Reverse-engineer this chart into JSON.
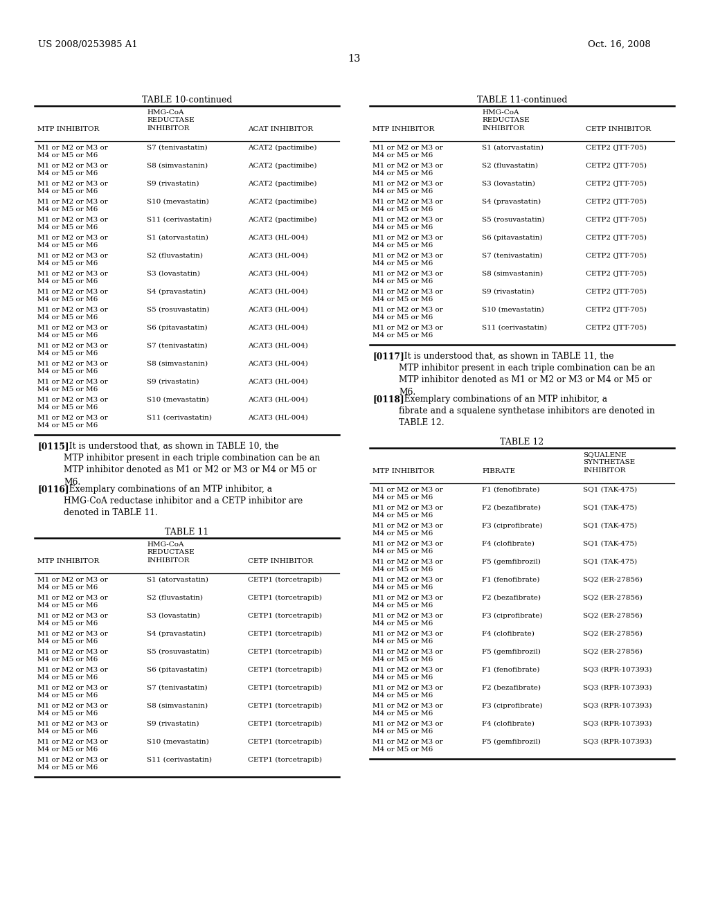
{
  "bg_color": "#ffffff",
  "header_left": "US 2008/0253985 A1",
  "header_right": "Oct. 16, 2008",
  "page_number": "13",
  "table10_title": "TABLE 10-continued",
  "table10_rows": [
    [
      "M1 or M2 or M3 or\nM4 or M5 or M6",
      "S7 (tenivastatin)",
      "ACAT2 (pactimibe)"
    ],
    [
      "M1 or M2 or M3 or\nM4 or M5 or M6",
      "S8 (simvastanin)",
      "ACAT2 (pactimibe)"
    ],
    [
      "M1 or M2 or M3 or\nM4 or M5 or M6",
      "S9 (rivastatin)",
      "ACAT2 (pactimibe)"
    ],
    [
      "M1 or M2 or M3 or\nM4 or M5 or M6",
      "S10 (mevastatin)",
      "ACAT2 (pactimibe)"
    ],
    [
      "M1 or M2 or M3 or\nM4 or M5 or M6",
      "S11 (cerivastatin)",
      "ACAT2 (pactimibe)"
    ],
    [
      "M1 or M2 or M3 or\nM4 or M5 or M6",
      "S1 (atorvastatin)",
      "ACAT3 (HL-004)"
    ],
    [
      "M1 or M2 or M3 or\nM4 or M5 or M6",
      "S2 (fluvastatin)",
      "ACAT3 (HL-004)"
    ],
    [
      "M1 or M2 or M3 or\nM4 or M5 or M6",
      "S3 (lovastatin)",
      "ACAT3 (HL-004)"
    ],
    [
      "M1 or M2 or M3 or\nM4 or M5 or M6",
      "S4 (pravastatin)",
      "ACAT3 (HL-004)"
    ],
    [
      "M1 or M2 or M3 or\nM4 or M5 or M6",
      "S5 (rosuvastatin)",
      "ACAT3 (HL-004)"
    ],
    [
      "M1 or M2 or M3 or\nM4 or M5 or M6",
      "S6 (pitavastatin)",
      "ACAT3 (HL-004)"
    ],
    [
      "M1 or M2 or M3 or\nM4 or M5 or M6",
      "S7 (tenivastatin)",
      "ACAT3 (HL-004)"
    ],
    [
      "M1 or M2 or M3 or\nM4 or M5 or M6",
      "S8 (simvastanin)",
      "ACAT3 (HL-004)"
    ],
    [
      "M1 or M2 or M3 or\nM4 or M5 or M6",
      "S9 (rivastatin)",
      "ACAT3 (HL-004)"
    ],
    [
      "M1 or M2 or M3 or\nM4 or M5 or M6",
      "S10 (mevastatin)",
      "ACAT3 (HL-004)"
    ],
    [
      "M1 or M2 or M3 or\nM4 or M5 or M6",
      "S11 (cerivastatin)",
      "ACAT3 (HL-004)"
    ]
  ],
  "table11_title_continued": "TABLE 11-continued",
  "table11_continued_rows": [
    [
      "M1 or M2 or M3 or\nM4 or M5 or M6",
      "S1 (atorvastatin)",
      "CETP2 (JTT-705)"
    ],
    [
      "M1 or M2 or M3 or\nM4 or M5 or M6",
      "S2 (fluvastatin)",
      "CETP2 (JTT-705)"
    ],
    [
      "M1 or M2 or M3 or\nM4 or M5 or M6",
      "S3 (lovastatin)",
      "CETP2 (JTT-705)"
    ],
    [
      "M1 or M2 or M3 or\nM4 or M5 or M6",
      "S4 (pravastatin)",
      "CETP2 (JTT-705)"
    ],
    [
      "M1 or M2 or M3 or\nM4 or M5 or M6",
      "S5 (rosuvastatin)",
      "CETP2 (JTT-705)"
    ],
    [
      "M1 or M2 or M3 or\nM4 or M5 or M6",
      "S6 (pitavastatin)",
      "CETP2 (JTT-705)"
    ],
    [
      "M1 or M2 or M3 or\nM4 or M5 or M6",
      "S7 (tenivastatin)",
      "CETP2 (JTT-705)"
    ],
    [
      "M1 or M2 or M3 or\nM4 or M5 or M6",
      "S8 (simvastanin)",
      "CETP2 (JTT-705)"
    ],
    [
      "M1 or M2 or M3 or\nM4 or M5 or M6",
      "S9 (rivastatin)",
      "CETP2 (JTT-705)"
    ],
    [
      "M1 or M2 or M3 or\nM4 or M5 or M6",
      "S10 (mevastatin)",
      "CETP2 (JTT-705)"
    ],
    [
      "M1 or M2 or M3 or\nM4 or M5 or M6",
      "S11 (cerivastatin)",
      "CETP2 (JTT-705)"
    ]
  ],
  "table11_title": "TABLE 11",
  "table11_rows": [
    [
      "M1 or M2 or M3 or\nM4 or M5 or M6",
      "S1 (atorvastatin)",
      "CETP1 (torcetrapib)"
    ],
    [
      "M1 or M2 or M3 or\nM4 or M5 or M6",
      "S2 (fluvastatin)",
      "CETP1 (torcetrapib)"
    ],
    [
      "M1 or M2 or M3 or\nM4 or M5 or M6",
      "S3 (lovastatin)",
      "CETP1 (torcetrapib)"
    ],
    [
      "M1 or M2 or M3 or\nM4 or M5 or M6",
      "S4 (pravastatin)",
      "CETP1 (torcetrapib)"
    ],
    [
      "M1 or M2 or M3 or\nM4 or M5 or M6",
      "S5 (rosuvastatin)",
      "CETP1 (torcetrapib)"
    ],
    [
      "M1 or M2 or M3 or\nM4 or M5 or M6",
      "S6 (pitavastatin)",
      "CETP1 (torcetrapib)"
    ],
    [
      "M1 or M2 or M3 or\nM4 or M5 or M6",
      "S7 (tenivastatin)",
      "CETP1 (torcetrapib)"
    ],
    [
      "M1 or M2 or M3 or\nM4 or M5 or M6",
      "S8 (simvastanin)",
      "CETP1 (torcetrapib)"
    ],
    [
      "M1 or M2 or M3 or\nM4 or M5 or M6",
      "S9 (rivastatin)",
      "CETP1 (torcetrapib)"
    ],
    [
      "M1 or M2 or M3 or\nM4 or M5 or M6",
      "S10 (mevastatin)",
      "CETP1 (torcetrapib)"
    ],
    [
      "M1 or M2 or M3 or\nM4 or M5 or M6",
      "S11 (cerivastatin)",
      "CETP1 (torcetrapib)"
    ]
  ],
  "table12_title": "TABLE 12",
  "table12_rows": [
    [
      "M1 or M2 or M3 or\nM4 or M5 or M6",
      "F1 (fenofibrate)",
      "SQ1 (TAK-475)"
    ],
    [
      "M1 or M2 or M3 or\nM4 or M5 or M6",
      "F2 (bezafibrate)",
      "SQ1 (TAK-475)"
    ],
    [
      "M1 or M2 or M3 or\nM4 or M5 or M6",
      "F3 (ciprofibrate)",
      "SQ1 (TAK-475)"
    ],
    [
      "M1 or M2 or M3 or\nM4 or M5 or M6",
      "F4 (clofibrate)",
      "SQ1 (TAK-475)"
    ],
    [
      "M1 or M2 or M3 or\nM4 or M5 or M6",
      "F5 (gemfibrozil)",
      "SQ1 (TAK-475)"
    ],
    [
      "M1 or M2 or M3 or\nM4 or M5 or M6",
      "F1 (fenofibrate)",
      "SQ2 (ER-27856)"
    ],
    [
      "M1 or M2 or M3 or\nM4 or M5 or M6",
      "F2 (bezafibrate)",
      "SQ2 (ER-27856)"
    ],
    [
      "M1 or M2 or M3 or\nM4 or M5 or M6",
      "F3 (ciprofibrate)",
      "SQ2 (ER-27856)"
    ],
    [
      "M1 or M2 or M3 or\nM4 or M5 or M6",
      "F4 (clofibrate)",
      "SQ2 (ER-27856)"
    ],
    [
      "M1 or M2 or M3 or\nM4 or M5 or M6",
      "F5 (gemfibrozil)",
      "SQ2 (ER-27856)"
    ],
    [
      "M1 or M2 or M3 or\nM4 or M5 or M6",
      "F1 (fenofibrate)",
      "SQ3 (RPR-107393)"
    ],
    [
      "M1 or M2 or M3 or\nM4 or M5 or M6",
      "F2 (bezafibrate)",
      "SQ3 (RPR-107393)"
    ],
    [
      "M1 or M2 or M3 or\nM4 or M5 or M6",
      "F3 (ciprofibrate)",
      "SQ3 (RPR-107393)"
    ],
    [
      "M1 or M2 or M3 or\nM4 or M5 or M6",
      "F4 (clofibrate)",
      "SQ3 (RPR-107393)"
    ],
    [
      "M1 or M2 or M3 or\nM4 or M5 or M6",
      "F5 (gemfibrozil)",
      "SQ3 (RPR-107393)"
    ]
  ]
}
